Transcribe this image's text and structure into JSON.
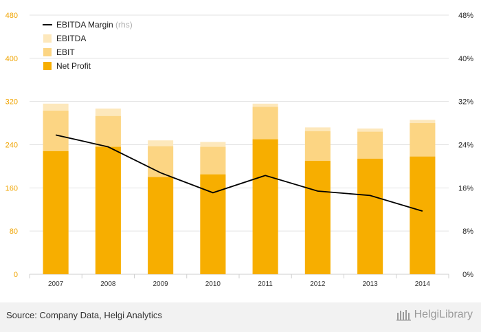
{
  "chart_data": {
    "type": "bar",
    "categories": [
      "2007",
      "2008",
      "2009",
      "2010",
      "2011",
      "2012",
      "2013",
      "2014"
    ],
    "series": [
      {
        "name": "Net Profit",
        "kind": "bar",
        "values": [
          228,
          236,
          180,
          185,
          250,
          210,
          214,
          218
        ],
        "color": "#f7ae00"
      },
      {
        "name": "EBIT",
        "kind": "bar",
        "values": [
          303,
          293,
          237,
          236,
          310,
          265,
          264,
          280
        ],
        "color": "#fcd583"
      },
      {
        "name": "EBITDA",
        "kind": "bar",
        "values": [
          316,
          307,
          248,
          245,
          316,
          272,
          270,
          286
        ],
        "color": "#fde8bc"
      },
      {
        "name": "EBITDA Margin",
        "kind": "line",
        "axis": "rhs",
        "values": [
          25.8,
          23.6,
          18.8,
          15.1,
          18.3,
          15.4,
          14.6,
          11.7
        ],
        "color": "#000000"
      }
    ],
    "legend": [
      {
        "label": "EBITDA Margin",
        "suffix": "(rhs)",
        "symbol": "line",
        "color": "#000000"
      },
      {
        "label": "EBITDA",
        "symbol": "box",
        "color": "#fde8bc"
      },
      {
        "label": "EBIT",
        "symbol": "box",
        "color": "#fcd583"
      },
      {
        "label": "Net Profit",
        "symbol": "box",
        "color": "#f7ae00"
      }
    ],
    "legend_position": "top-left",
    "ylim": [
      0,
      480
    ],
    "yticks": [
      "0",
      "80",
      "160",
      "240",
      "320",
      "400",
      "480"
    ],
    "y2lim": [
      0,
      48
    ],
    "y2ticks": [
      "0%",
      "8%",
      "16%",
      "24%",
      "32%",
      "40%",
      "48%"
    ],
    "grid": true,
    "title": "",
    "xlabel": "",
    "ylabel": ""
  },
  "footer": {
    "source": "Source: Company Data, Helgi Analytics",
    "brand": "HelgiLibrary"
  },
  "colors": {
    "left_axis": "#f0a400",
    "grid": "#e3e3e3",
    "footer_bg": "#f2f2f2"
  }
}
